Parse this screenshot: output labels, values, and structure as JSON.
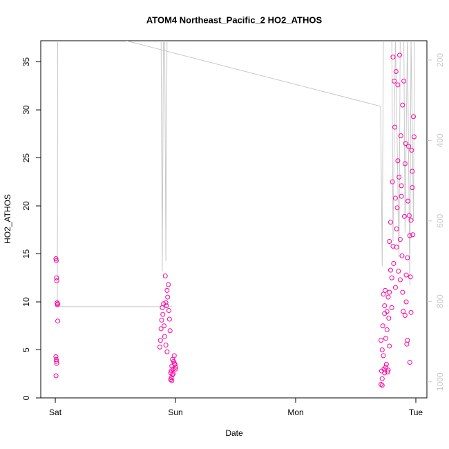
{
  "chart_data": {
    "type": "scatter",
    "title": "ATOM4 Northeast_Pacific_2 HO2_ATHOS",
    "xlabel": "Date",
    "ylabel": "HO2_ATHOS",
    "xlim": [
      -0.121,
      3.092
    ],
    "xticks": [
      {
        "value": 0,
        "label": "Sat"
      },
      {
        "value": 1,
        "label": "Sun"
      },
      {
        "value": 2,
        "label": "Mon"
      },
      {
        "value": 3,
        "label": "Tue"
      }
    ],
    "ylim": [
      0,
      37.2
    ],
    "yticks": [
      0,
      5,
      10,
      15,
      20,
      25,
      30,
      35
    ],
    "y2lim": [
      1040,
      152
    ],
    "y2ticks": [
      200,
      400,
      600,
      800,
      1000
    ],
    "series": [
      {
        "type": "scatter",
        "color": "#ff00a0",
        "x": [
          0.005,
          0.008,
          0.01,
          0.012,
          0.015,
          0.018,
          0.02,
          0.02,
          0.005,
          0.008,
          0.01,
          0.012,
          0.006,
          0.87,
          0.875,
          0.88,
          0.885,
          0.89,
          0.895,
          0.9,
          0.905,
          0.91,
          0.915,
          0.92,
          0.925,
          0.93,
          0.935,
          0.94,
          0.945,
          0.95,
          0.955,
          0.96,
          0.965,
          0.97,
          0.975,
          0.98,
          0.985,
          0.99,
          0.995,
          1.0,
          0.96,
          0.965,
          0.97,
          0.975,
          0.98,
          0.99,
          1.0,
          0.92,
          0.93,
          2.71,
          2.715,
          2.72,
          2.725,
          2.73,
          2.735,
          2.74,
          2.745,
          2.75,
          2.755,
          2.76,
          2.765,
          2.77,
          2.775,
          2.78,
          2.71,
          2.72,
          2.73,
          2.74,
          2.75,
          2.76,
          2.77,
          2.78,
          2.72,
          2.74,
          2.78,
          2.79,
          2.8,
          2.805,
          2.81,
          2.815,
          2.82,
          2.825,
          2.83,
          2.835,
          2.84,
          2.845,
          2.85,
          2.855,
          2.86,
          2.865,
          2.87,
          2.875,
          2.88,
          2.885,
          2.89,
          2.895,
          2.9,
          2.905,
          2.91,
          2.915,
          2.92,
          2.925,
          2.93,
          2.935,
          2.94,
          2.945,
          2.95,
          2.955,
          2.96,
          2.965,
          2.97,
          2.975,
          2.98,
          2.985,
          2.79,
          2.81,
          2.83,
          2.85,
          2.87,
          2.89,
          2.91,
          2.93,
          2.95,
          2.97,
          2.8,
          2.84,
          2.88,
          2.92,
          2.96
        ],
        "values": [
          14.5,
          14.3,
          12.5,
          12.2,
          9.9,
          9.7,
          9.8,
          8.0,
          4.3,
          4.0,
          3.8,
          3.6,
          2.3,
          5.3,
          6.0,
          7.2,
          8.1,
          9.4,
          8.7,
          9.8,
          7.5,
          6.4,
          12.7,
          9.9,
          9.6,
          11.2,
          10.5,
          11.8,
          9.1,
          8.2,
          7.0,
          2.6,
          2.1,
          1.8,
          2.4,
          3.0,
          3.8,
          4.4,
          3.5,
          3.2,
          1.9,
          2.8,
          3.3,
          4.0,
          2.5,
          3.6,
          3.0,
          5.5,
          4.8,
          1.4,
          2.8,
          5.0,
          7.5,
          10.8,
          3.0,
          2.6,
          11.2,
          6.2,
          3.5,
          9.0,
          2.7,
          10.5,
          8.3,
          5.4,
          6.0,
          1.3,
          4.4,
          8.8,
          3.2,
          7.1,
          2.9,
          11.0,
          2.0,
          9.6,
          16.3,
          18.3,
          12.5,
          22.5,
          35.5,
          14.0,
          33.0,
          28.2,
          11.5,
          34.0,
          17.6,
          19.8,
          32.6,
          13.2,
          23.0,
          35.7,
          12.3,
          27.3,
          21.0,
          14.8,
          30.5,
          9.0,
          33.0,
          18.9,
          24.4,
          26.5,
          12.8,
          5.6,
          14.6,
          20.5,
          26.2,
          19.0,
          16.9,
          12.6,
          18.5,
          25.8,
          21.9,
          17.0,
          29.3,
          27.2,
          13.3,
          15.8,
          20.8,
          24.7,
          16.5,
          11.0,
          8.6,
          6.0,
          3.7,
          23.6,
          9.4,
          15.7,
          22.1,
          10.0,
          8.9
        ]
      },
      {
        "type": "line",
        "axis": "y2",
        "color": "#c8c8c8",
        "x": [
          0.0,
          0.97,
          null,
          0.017,
          0.02,
          null,
          0.88,
          0.89,
          0.9,
          0.91,
          0.92,
          0.93,
          null,
          0.59,
          2.707,
          2.72,
          2.73,
          2.8,
          2.81,
          2.83,
          2.86,
          2.87,
          2.9,
          2.91,
          2.93,
          2.95,
          2.96,
          2.98,
          2.99
        ],
        "values": [
          813,
          813,
          null,
          813,
          130,
          null,
          130,
          725,
          130,
          130,
          700,
          130,
          null,
          152,
          315,
          713,
          140,
          140,
          650,
          140,
          690,
          140,
          140,
          630,
          140,
          760,
          140,
          600,
          140
        ]
      }
    ]
  }
}
